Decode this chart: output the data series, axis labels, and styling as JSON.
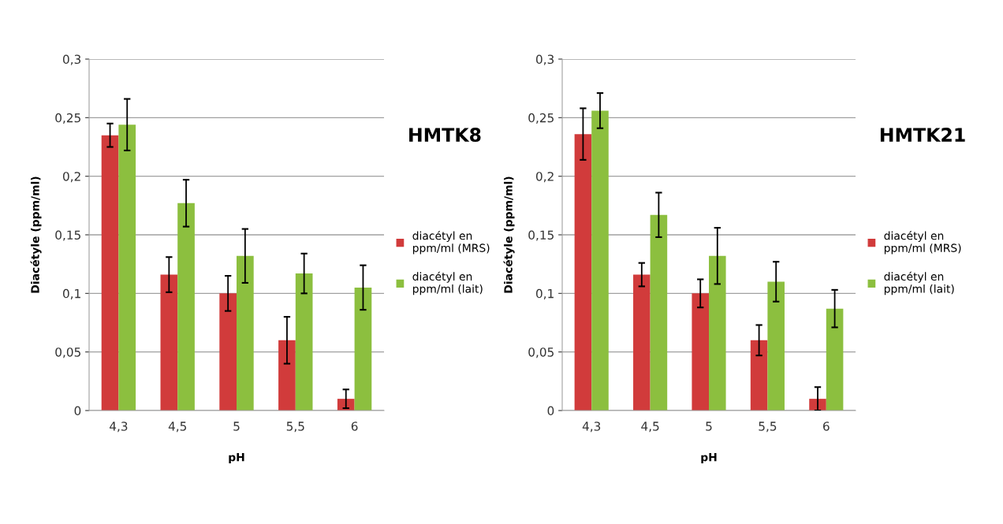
{
  "chart_data": [
    {
      "type": "bar",
      "annotations": [
        "HMTK8"
      ],
      "xlabel": "pH",
      "ylabel": "Diacétyle (ppm/ml)",
      "categories": [
        "4,3",
        "4,5",
        "5",
        "5,5",
        "6"
      ],
      "series": [
        {
          "name": "diacétyl en ppm/ml (MRS)",
          "color": "#d13b3b",
          "values": [
            0.235,
            0.116,
            0.1,
            0.06,
            0.01
          ],
          "errors": [
            0.01,
            0.015,
            0.015,
            0.02,
            0.008
          ]
        },
        {
          "name": "diacétyl en ppm/ml (lait)",
          "color": "#8cbf3f",
          "values": [
            0.244,
            0.177,
            0.132,
            0.117,
            0.105
          ],
          "errors": [
            0.022,
            0.02,
            0.023,
            0.017,
            0.019
          ]
        }
      ],
      "ylim": [
        0,
        0.3
      ],
      "yticks": [
        {
          "value": 0,
          "label": "0"
        },
        {
          "value": 0.05,
          "label": "0,05"
        },
        {
          "value": 0.1,
          "label": "0,1"
        },
        {
          "value": 0.15,
          "label": "0,15"
        },
        {
          "value": 0.2,
          "label": "0,2"
        },
        {
          "value": 0.25,
          "label": "0,25"
        },
        {
          "value": 0.3,
          "label": "0,3"
        }
      ],
      "grid": "y",
      "legend": "right"
    },
    {
      "type": "bar",
      "annotations": [
        "HMTK21"
      ],
      "xlabel": "pH",
      "ylabel": "Diacétyle (ppm/ml)",
      "categories": [
        "4,3",
        "4,5",
        "5",
        "5,5",
        "6"
      ],
      "series": [
        {
          "name": "diacétyl en ppm/ml (MRS)",
          "color": "#d13b3b",
          "values": [
            0.236,
            0.116,
            0.1,
            0.06,
            0.01
          ],
          "errors": [
            0.022,
            0.01,
            0.012,
            0.013,
            0.01
          ]
        },
        {
          "name": "diacétyl en ppm/ml (lait)",
          "color": "#8cbf3f",
          "values": [
            0.256,
            0.167,
            0.132,
            0.11,
            0.087
          ],
          "errors": [
            0.015,
            0.019,
            0.024,
            0.017,
            0.016
          ]
        }
      ],
      "ylim": [
        0,
        0.3
      ],
      "yticks": [
        {
          "value": 0,
          "label": "0"
        },
        {
          "value": 0.05,
          "label": "0,05"
        },
        {
          "value": 0.1,
          "label": "0,1"
        },
        {
          "value": 0.15,
          "label": "0,15"
        },
        {
          "value": 0.2,
          "label": "0,2"
        },
        {
          "value": 0.25,
          "label": "0,25"
        },
        {
          "value": 0.3,
          "label": "0,3"
        }
      ],
      "grid": "y",
      "legend": "right"
    }
  ]
}
